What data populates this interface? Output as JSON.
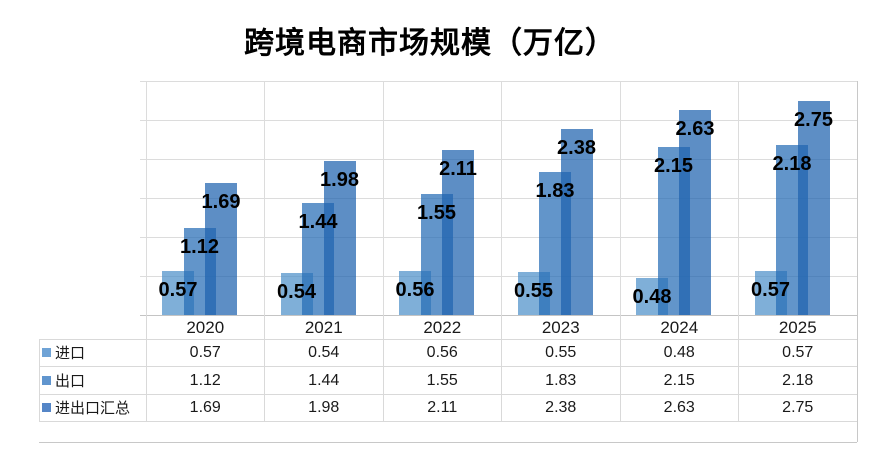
{
  "title": "跨境电商市场规模（万亿）",
  "chart_data": {
    "type": "bar",
    "title": "跨境电商市场规模（万亿）",
    "categories": [
      "2020",
      "2021",
      "2022",
      "2023",
      "2024",
      "2025"
    ],
    "series": [
      {
        "name": "进口",
        "values": [
          0.57,
          0.54,
          0.56,
          0.55,
          0.48,
          0.57
        ],
        "marker_color": "#6FA3D6",
        "bar_color": "rgba(77,144,201,0.72)"
      },
      {
        "name": "出口",
        "values": [
          1.12,
          1.44,
          1.55,
          1.83,
          2.15,
          2.18
        ],
        "marker_color": "#6095CE",
        "bar_color": "rgba(38,108,181,0.72)"
      },
      {
        "name": "进出口汇总",
        "values": [
          1.69,
          1.98,
          2.11,
          2.38,
          2.63,
          2.75
        ],
        "marker_color": "#5586C7",
        "bar_color": "rgba(30,99,174,0.72)"
      }
    ],
    "ylim": [
      0,
      3
    ],
    "gridline_interval": 0.5,
    "grid": true,
    "y_axis_labels_visible": false,
    "data_labels": true,
    "legend_position": "table-left"
  },
  "colors": {
    "gridline": "#DCDCDC",
    "axis_line": "#C4C4C4",
    "table_border": "#D9D9D9",
    "frame_border": "#C8C8C8",
    "text": "#111111",
    "background": "#FFFFFF"
  }
}
